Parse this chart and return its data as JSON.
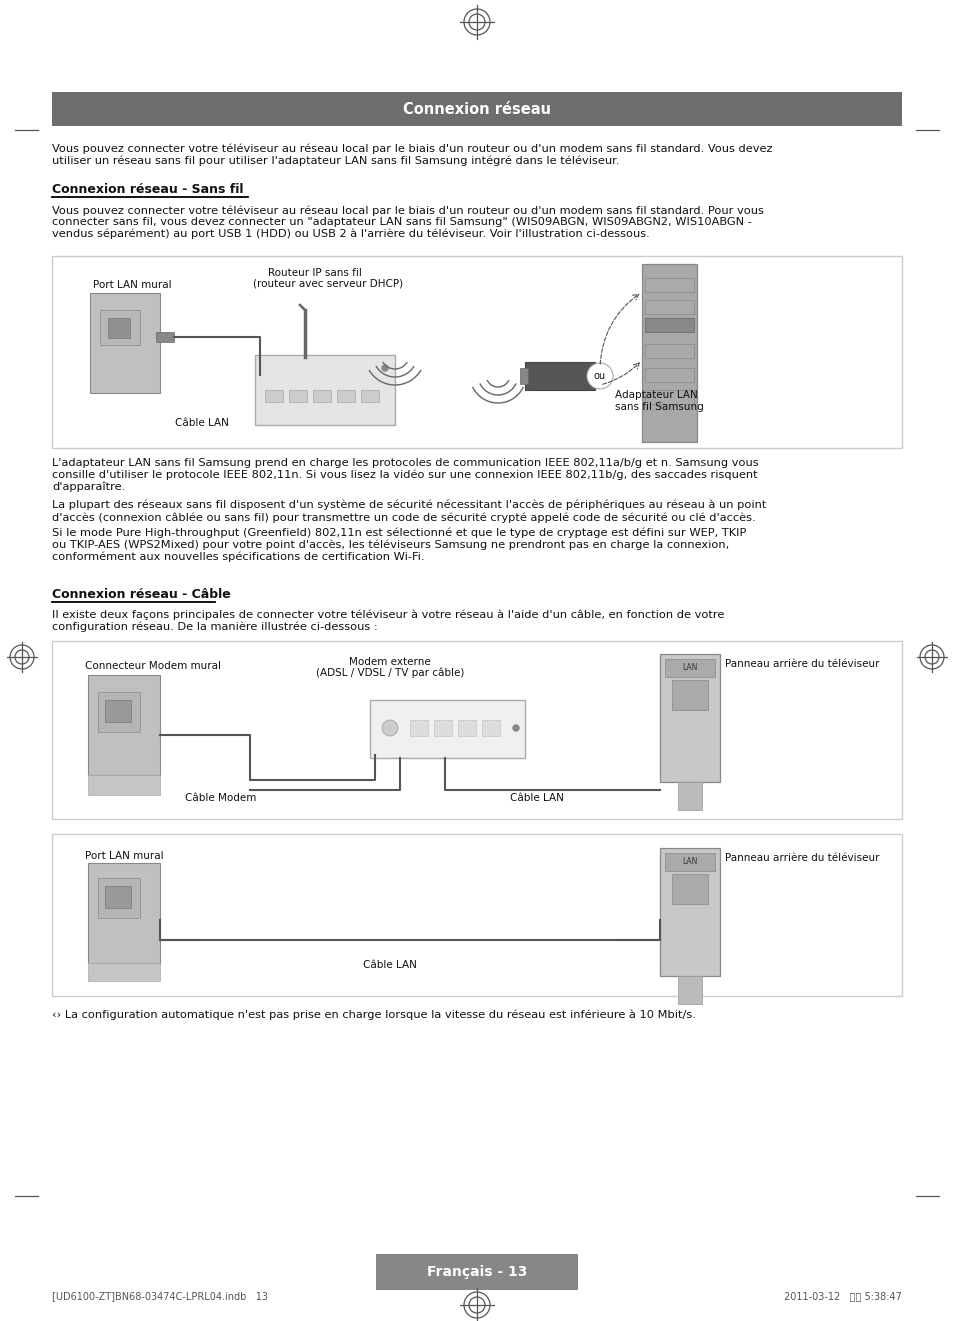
{
  "page_bg": "#ffffff",
  "header_bg": "#6d6d6d",
  "header_text": "Connexion réseau",
  "header_text_color": "#ffffff",
  "header_fontsize": 10.5,
  "body_fontsize": 8.2,
  "label_fontsize": 7.5,
  "section_fontsize": 9.0,
  "intro_text": "Vous pouvez connecter votre téléviseur au réseau local par le biais d'un routeur ou d'un modem sans fil standard. Vous devez\nutiliser un réseau sans fil pour utiliser l'adaptateur LAN sans fil Samsung intégré dans le téléviseur.",
  "section1_title": "Connexion réseau - Sans fil",
  "section1_para": "Vous pouvez connecter votre téléviseur au réseau local par le biais d'un routeur ou d'un modem sans fil standard. Pour vous\nconnecter sans fil, vous devez connecter un \"adaptateur LAN sans fil Samsung\" (WIS09ABGN, WIS09ABGN2, WIS10ABGN -\nvendus séparément) au port USB 1 (HDD) ou USB 2 à l'arrière du téléviseur. Voir l'illustration ci-dessous.",
  "section1_p2": "L'adaptateur LAN sans fil Samsung prend en charge les protocoles de communication IEEE 802,11a/b/g et n. Samsung vous\nconsille d'utiliser le protocole IEEE 802,11n. Si vous lisez la vidéo sur une connexion IEEE 802,11b/g, des saccades risquent\nd'apparaître.",
  "section1_p3": "La plupart des réseaux sans fil disposent d'un système de sécurité nécessitant l'accès de périphériques au réseau à un point\nd'accès (connexion câblée ou sans fil) pour transmettre un code de sécurité crypté appelé code de sécurité ou clé d'accès.",
  "section1_p4": "Si le mode Pure High-throughput (Greenfield) 802,11n est sélectionné et que le type de cryptage est défini sur WEP, TKIP\nou TKIP-AES (WPS2Mixed) pour votre point d'accès, les téléviseurs Samsung ne prendront pas en charge la connexion,\nconformément aux nouvelles spécifications de certification Wi-Fi.",
  "section2_title": "Connexion réseau - Câble",
  "section2_para": "Il existe deux façons principales de connecter votre téléviseur à votre réseau à l'aide d'un câble, en fonction de votre\nconfiguration réseau. De la manière illustrée ci-dessous :",
  "footer_note": "‹› La configuration automatique n'est pas prise en charge lorsque la vitesse du réseau est inférieure à 10 Mbit/s.",
  "page_label": "Français - 13",
  "footer_file": "[UD6100-ZT]BN68-03474C-LPRL04.indb   13",
  "footer_date": "2011-03-12   오후 5:38:47",
  "box_border_color": "#cccccc",
  "gray_light": "#d0d0d0",
  "gray_mid": "#a8a8a8",
  "gray_dark": "#888888",
  "gray_wall": "#c0c0c0"
}
